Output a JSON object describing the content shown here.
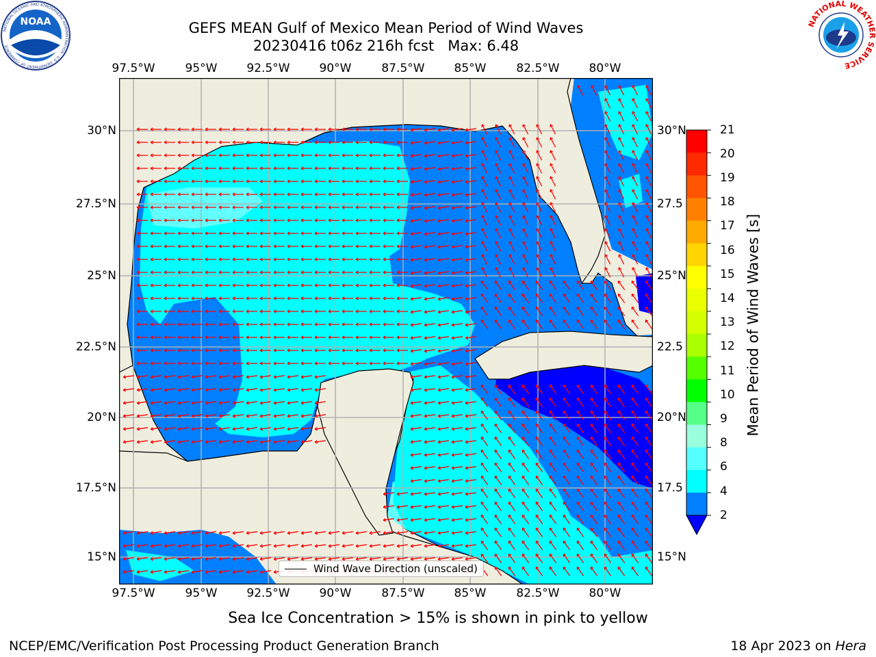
{
  "header": {
    "title_line1": "GEFS MEAN Gulf of Mexico Mean Period of Wind Waves",
    "title_line2": "20230416 t06z 216h fcst   Max: 6.48"
  },
  "logos": {
    "left": {
      "name": "noaa-logo",
      "text": "NOAA",
      "ring_text": "NATIONAL OCEANIC AND ATMOSPHERIC ADMINISTRATION · U.S. DEPARTMENT OF COMMERCE"
    },
    "right": {
      "name": "nws-logo",
      "ring_text": "NATIONAL WEATHER SERVICE"
    }
  },
  "map": {
    "lon_labels": [
      "97.5°W",
      "95°W",
      "92.5°W",
      "90°W",
      "87.5°W",
      "85°W",
      "82.5°W",
      "80°W"
    ],
    "lat_labels_left": [
      "30°N",
      "27.5°N",
      "25°N",
      "22.5°N",
      "20°N",
      "17.5°N",
      "15°N"
    ],
    "lat_labels_right": [
      "30°N",
      "27.5",
      "25°N",
      "22.5",
      "20°N",
      "17.5",
      "15°N"
    ],
    "legend_label": "Wind Wave Direction (unscaled)",
    "colors": {
      "land": "#efedde",
      "cyan": "#00ffff",
      "lightcyan": "#63ffff",
      "mid_blue": "#0080ff",
      "deep_blue": "#0000ff",
      "arrow": "#ff0000",
      "grid": "#b0b0b0"
    }
  },
  "colorbar": {
    "label": "Mean Period of Wind Waves [s]",
    "ticks": [
      "21",
      "20",
      "19",
      "18",
      "17",
      "16",
      "15",
      "14",
      "13",
      "12",
      "11",
      "10",
      "9",
      "8",
      "6",
      "4",
      "2"
    ],
    "band_colors": [
      "#ff0000",
      "#ff2a00",
      "#ff5500",
      "#ff8000",
      "#ffaa00",
      "#ffd400",
      "#ffff00",
      "#eaff00",
      "#d4ff00",
      "#aaff00",
      "#55ff00",
      "#00ff00",
      "#55ff88",
      "#99ffdd",
      "#55ffff",
      "#00ffff",
      "#0080ff"
    ],
    "extend_color": "#0000ff"
  },
  "notes": {
    "ice": "Sea Ice Concentration > 15% is shown in pink to yellow"
  },
  "footer": {
    "left": "NCEP/EMC/Verification Post Processing Product Generation Branch",
    "date": "18 Apr 2023 on ",
    "machine": "Hera"
  }
}
